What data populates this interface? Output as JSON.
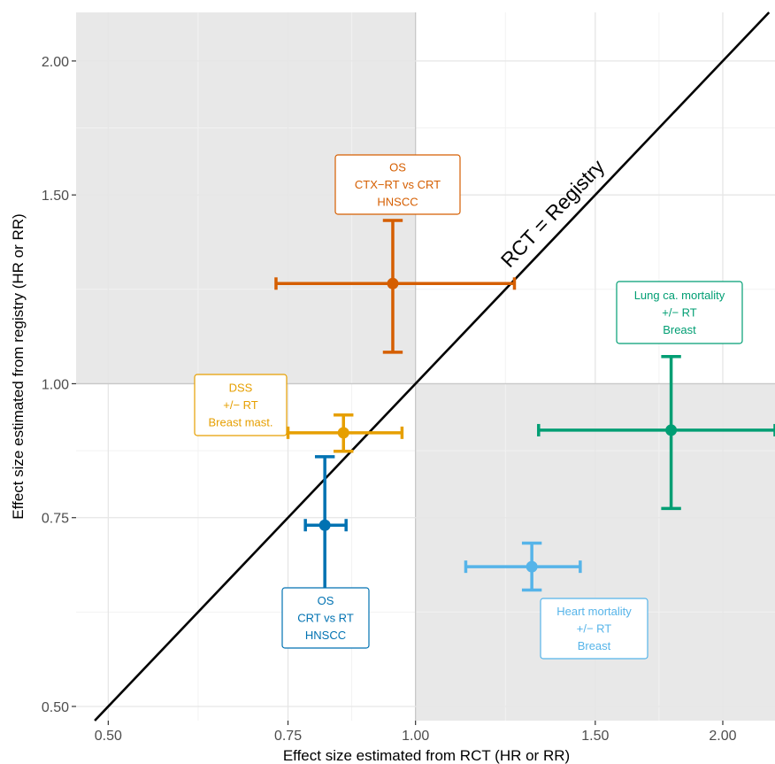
{
  "chart_data": {
    "type": "scatter",
    "xlabel": "Effect size estimated from RCT (HR or RR)",
    "ylabel": "Effect size estimated from registry (HR or RR)",
    "scale": "log",
    "xlim": [
      0.465,
      2.25
    ],
    "ylim": [
      0.485,
      2.22
    ],
    "x_ticks": [
      0.5,
      0.75,
      1.0,
      1.5,
      2.0
    ],
    "x_tick_labels": [
      "0.50",
      "0.75",
      "1.00",
      "1.50",
      "2.00"
    ],
    "y_ticks": [
      0.5,
      0.75,
      1.0,
      1.5,
      2.0
    ],
    "y_tick_labels": [
      "0.50",
      "0.75",
      "1.00",
      "1.50",
      "2.00"
    ],
    "grid": true,
    "shaded_quadrants": [
      "top-left",
      "bottom-right"
    ],
    "reference_line_label": "RCT = Registry",
    "points": [
      {
        "x": 0.95,
        "x_low": 0.73,
        "x_high": 1.25,
        "y": 1.24,
        "y_low": 1.07,
        "y_high": 1.42,
        "color": "#D55E00",
        "label_lines": [
          "OS",
          "CTX−RT vs CRT",
          "HNSCC"
        ]
      },
      {
        "x": 1.78,
        "x_low": 1.32,
        "x_high": 2.25,
        "y": 0.905,
        "y_low": 0.765,
        "y_high": 1.06,
        "color": "#009E73",
        "label_lines": [
          "Lung ca. mortality",
          "+/− RT",
          "Breast"
        ]
      },
      {
        "x": 0.85,
        "x_low": 0.75,
        "x_high": 0.97,
        "y": 0.9,
        "y_low": 0.865,
        "y_high": 0.935,
        "color": "#E69F00",
        "label_lines": [
          "DSS",
          "+/− RT",
          "Breast mast."
        ]
      },
      {
        "x": 0.815,
        "x_low": 0.78,
        "x_high": 0.855,
        "y": 0.738,
        "y_low": 0.635,
        "y_high": 0.855,
        "color": "#0072B2",
        "label_lines": [
          "OS",
          "CRT vs RT",
          "HNSCC"
        ]
      },
      {
        "x": 1.3,
        "x_low": 1.12,
        "x_high": 1.45,
        "y": 0.675,
        "y_low": 0.642,
        "y_high": 0.71,
        "color": "#56B4E9",
        "label_lines": [
          "Heart mortality",
          "+/− RT",
          "Breast"
        ]
      }
    ]
  }
}
